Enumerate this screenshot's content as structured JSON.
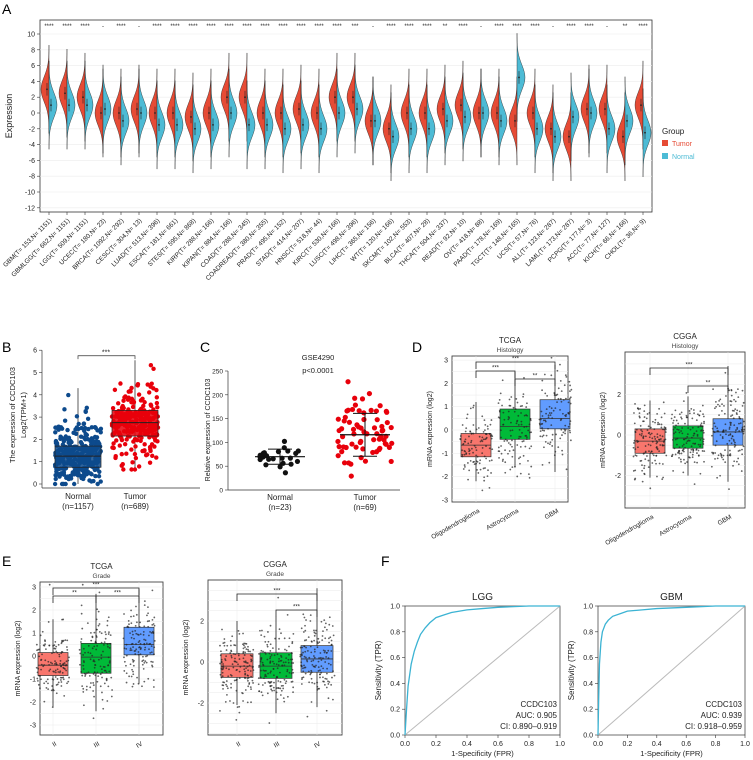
{
  "panel_letters": {
    "a": "A",
    "b": "B",
    "c": "C",
    "d": "D",
    "e": "E",
    "f": "F"
  },
  "colors": {
    "tumor": "#E64B35",
    "normal": "#4DBBD5",
    "b_normal": "#0D4A8C",
    "b_tumor": "#E8000B",
    "box_red": "#F8766D",
    "box_green": "#00BA38",
    "box_blue": "#619CFF",
    "roc": "#3BB3D3"
  },
  "chart_data": [
    {
      "id": "A",
      "type": "violin",
      "ylabel": "Expression",
      "ylim": [
        -12,
        11
      ],
      "yticks": [
        10,
        8,
        6,
        4,
        2,
        0,
        -2,
        -4,
        -6,
        -8,
        -10,
        -12
      ],
      "legend": {
        "title": "Group",
        "items": [
          "Tumor",
          "Normal"
        ],
        "placement": "right"
      },
      "categories": [
        "GBM(T= 153,N= 1151)",
        "GBMLGG(T= 662,N= 1151)",
        "LGG(T= 509,N= 1151)",
        "UCEC(T= 180,N= 23)",
        "BRCA(T= 1092,N= 292)",
        "CESC(T= 304,N= 13)",
        "LUAD(T= 513,N= 396)",
        "ESCA(T= 181,N= 661)",
        "STES(T= 595,N= 868)",
        "KIRP(T= 288,N= 166)",
        "KIPAN(T= 884,N= 166)",
        "COAD(T= 288,N= 345)",
        "COADREAD(T= 380,N= 355)",
        "PRAD(T= 495,N= 152)",
        "STAD(T= 414,N= 207)",
        "HNSC(T= 518,N= 44)",
        "KIRC(T= 530,N= 166)",
        "LUSC(T= 498,N= 396)",
        "LIHC(T= 365,N= 156)",
        "WT(T= 120,N= 166)",
        "SKCM(T= 102,N= 553)",
        "BLCA(T= 407,N= 28)",
        "THCA(T= 504,N= 337)",
        "READ(T= 92,N= 10)",
        "OV(T= 418,N= 88)",
        "PAAD(T= 178,N= 169)",
        "TGCT(T= 148,N= 165)",
        "UCS(T= 57,N= 76)",
        "ALL(T= 123,N= 287)",
        "LAML(T= 173,N= 287)",
        "PCPG(T= 177,N= 3)",
        "ACC(T= 77,N= 127)",
        "KICH(T= 66,N= 166)",
        "CHOL(T= 36,N= 9)"
      ],
      "significance": [
        "****",
        "****",
        "****",
        "-",
        "****",
        "-",
        "****",
        "****",
        "****",
        "****",
        "****",
        "****",
        "****",
        "****",
        "****",
        "****",
        "****",
        "***",
        "-",
        "****",
        "****",
        "****",
        "**",
        "****",
        "-",
        "****",
        "****",
        "****",
        "-",
        "****",
        "****",
        "-",
        "**",
        "****"
      ],
      "tumor_median": [
        3,
        2.5,
        2,
        0,
        0,
        0.5,
        0,
        0,
        -0.5,
        0,
        2,
        2,
        0,
        0,
        0.5,
        0,
        2,
        2,
        -1,
        -2,
        0,
        0,
        0.5,
        1,
        0,
        0,
        -1,
        0,
        -2,
        -3,
        0.5,
        0.5,
        -3,
        1
      ],
      "normal_median": [
        1,
        1,
        1,
        0.5,
        -1,
        0,
        -1.5,
        -1.5,
        -2,
        -1.5,
        0,
        -1.5,
        -1.5,
        -2,
        -1.5,
        -2,
        0,
        0.5,
        -1,
        -3,
        -2,
        -2,
        -1,
        -0.5,
        0,
        -1,
        4.5,
        -2,
        -3,
        -0.5,
        0,
        -2,
        -1,
        -2.5
      ]
    },
    {
      "id": "B",
      "type": "box-jitter",
      "ylabel": "The expression of CCDC103",
      "ylabel2": "Log2(TPM+1)",
      "ylim": [
        0,
        6
      ],
      "yticks": [
        0,
        1,
        2,
        3,
        4,
        5,
        6
      ],
      "categories": [
        "Normal",
        "Tumor"
      ],
      "n_labels": [
        "(n=1157)",
        "(n=689)"
      ],
      "boxes": [
        {
          "q1": 0.75,
          "median": 1.25,
          "q3": 1.7,
          "min": 0,
          "max": 4.3
        },
        {
          "q1": 2.15,
          "median": 2.75,
          "q3": 3.3,
          "min": 0.65,
          "max": 5.55
        }
      ],
      "significance": "***"
    },
    {
      "id": "C",
      "type": "scatter-dot",
      "title": "GSE4290",
      "subtitle": "p<0.0001",
      "ylabel": "Relative expression of CCDC103",
      "ylim": [
        0,
        250
      ],
      "yticks": [
        0,
        50,
        100,
        150,
        200,
        250
      ],
      "categories": [
        "Normal",
        "Tumor"
      ],
      "n_labels": [
        "(n=23)",
        "(n=69)"
      ],
      "groups": [
        {
          "mean": 70,
          "sd": 16,
          "n": 23
        },
        {
          "mean": 116,
          "sd": 45,
          "n": 69
        }
      ]
    },
    {
      "id": "D1",
      "type": "box-jitter",
      "title": "TCGA",
      "subtitle": "Histology",
      "ylabel": "mRNA expression (log2)",
      "ylim": [
        -3.2,
        3.2
      ],
      "yticks": [
        3,
        2,
        1,
        0,
        -1,
        -2,
        -3
      ],
      "categories": [
        "Oligodendroglioma",
        "Astrocytoma",
        "GBM"
      ],
      "boxes": [
        {
          "q1": -1.15,
          "median": -0.65,
          "q3": -0.15,
          "min": -2.2,
          "max": 1.2
        },
        {
          "q1": -0.4,
          "median": 0.15,
          "q3": 0.9,
          "min": -1.6,
          "max": 2.5
        },
        {
          "q1": 0.05,
          "median": 0.5,
          "q3": 1.3,
          "min": -1.8,
          "max": 2.8
        }
      ],
      "comparisons": [
        {
          "a": 0,
          "b": 2,
          "label": "***"
        },
        {
          "a": 0,
          "b": 1,
          "label": "***"
        },
        {
          "a": 1,
          "b": 2,
          "label": "**"
        }
      ]
    },
    {
      "id": "D2",
      "type": "box-jitter",
      "title": "CGGA",
      "subtitle": "Histology",
      "ylabel": "mRNA expression (log2)",
      "ylim": [
        -3.5,
        3.8
      ],
      "yticks": [
        2,
        0,
        -2
      ],
      "categories": [
        "Oligodendroglioma",
        "Astrocytoma",
        "GBM"
      ],
      "boxes": [
        {
          "q1": -0.9,
          "median": -0.3,
          "q3": 0.3,
          "min": -2.1,
          "max": 1.7
        },
        {
          "q1": -0.65,
          "median": -0.15,
          "q3": 0.45,
          "min": -2,
          "max": 1.9
        },
        {
          "q1": -0.5,
          "median": 0.15,
          "q3": 0.8,
          "min": -2.3,
          "max": 3.4
        }
      ],
      "comparisons": [
        {
          "a": 0,
          "b": 2,
          "label": "***"
        },
        {
          "a": 1,
          "b": 2,
          "label": "**"
        }
      ]
    },
    {
      "id": "E1",
      "type": "box-jitter",
      "title": "TCGA",
      "subtitle": "Grade",
      "ylabel": "mRNA expression (log2)",
      "ylim": [
        -3.3,
        3.2
      ],
      "yticks": [
        3,
        2,
        1,
        0,
        -1,
        -2,
        -3
      ],
      "categories": [
        "II",
        "III",
        "IV"
      ],
      "boxes": [
        {
          "q1": -0.85,
          "median": -0.4,
          "q3": 0.15,
          "min": -2.2,
          "max": 1.6
        },
        {
          "q1": -0.75,
          "median": -0.05,
          "q3": 0.55,
          "min": -2.4,
          "max": 2.7
        },
        {
          "q1": 0.05,
          "median": 0.5,
          "q3": 1.25,
          "min": -1.2,
          "max": 2.9
        }
      ],
      "comparisons": [
        {
          "a": 0,
          "b": 2,
          "label": "***"
        },
        {
          "a": 0,
          "b": 1,
          "label": "**"
        },
        {
          "a": 1,
          "b": 2,
          "label": "***"
        }
      ]
    },
    {
      "id": "E2",
      "type": "box-jitter",
      "title": "CGGA",
      "subtitle": "Grade",
      "ylabel": "mRNA expression (log2)",
      "ylim": [
        -3.5,
        3.8
      ],
      "yticks": [
        2,
        0,
        -2
      ],
      "categories": [
        "II",
        "III",
        "IV"
      ],
      "boxes": [
        {
          "q1": -0.75,
          "median": -0.2,
          "q3": 0.4,
          "min": -2.1,
          "max": 2
        },
        {
          "q1": -0.8,
          "median": -0.2,
          "q3": 0.45,
          "min": -2.5,
          "max": 2.2
        },
        {
          "q1": -0.5,
          "median": 0.15,
          "q3": 0.8,
          "min": -2.2,
          "max": 3.6
        }
      ],
      "comparisons": [
        {
          "a": 0,
          "b": 2,
          "label": "***"
        },
        {
          "a": 1,
          "b": 2,
          "label": "***"
        }
      ]
    },
    {
      "id": "F1",
      "type": "line",
      "title": "LGG",
      "xlabel": "1-Specificity (FPR)",
      "ylabel": "Sensitivity (TPR)",
      "xlim": [
        0,
        1
      ],
      "ylim": [
        0,
        1
      ],
      "ticks": [
        "0.0",
        "0.2",
        "0.4",
        "0.6",
        "0.8",
        "1.0"
      ],
      "gene": "CCDC103",
      "auc": "AUC: 0.905",
      "ci": "CI: 0.890–0.919",
      "fpr": [
        0,
        0.01,
        0.02,
        0.04,
        0.06,
        0.08,
        0.1,
        0.13,
        0.16,
        0.2,
        0.25,
        0.3,
        0.4,
        0.5,
        0.6,
        0.8,
        1
      ],
      "tpr": [
        0,
        0.2,
        0.38,
        0.55,
        0.65,
        0.72,
        0.78,
        0.83,
        0.87,
        0.91,
        0.93,
        0.95,
        0.97,
        0.98,
        0.99,
        1,
        1
      ]
    },
    {
      "id": "F2",
      "type": "line",
      "title": "GBM",
      "xlabel": "1-Specificity (FPR)",
      "ylabel": "Sensitivity (TPR)",
      "xlim": [
        0,
        1
      ],
      "ylim": [
        0,
        1
      ],
      "ticks": [
        "0.0",
        "0.2",
        "0.4",
        "0.6",
        "0.8",
        "1.0"
      ],
      "gene": "CCDC103",
      "auc": "AUC: 0.939",
      "ci": "CI: 0.918–0.959",
      "fpr": [
        0,
        0.005,
        0.01,
        0.02,
        0.03,
        0.05,
        0.07,
        0.1,
        0.15,
        0.2,
        0.3,
        0.4,
        0.6,
        0.8,
        1
      ],
      "tpr": [
        0,
        0.3,
        0.55,
        0.72,
        0.8,
        0.86,
        0.89,
        0.92,
        0.94,
        0.96,
        0.97,
        0.98,
        0.99,
        1,
        1
      ]
    }
  ]
}
